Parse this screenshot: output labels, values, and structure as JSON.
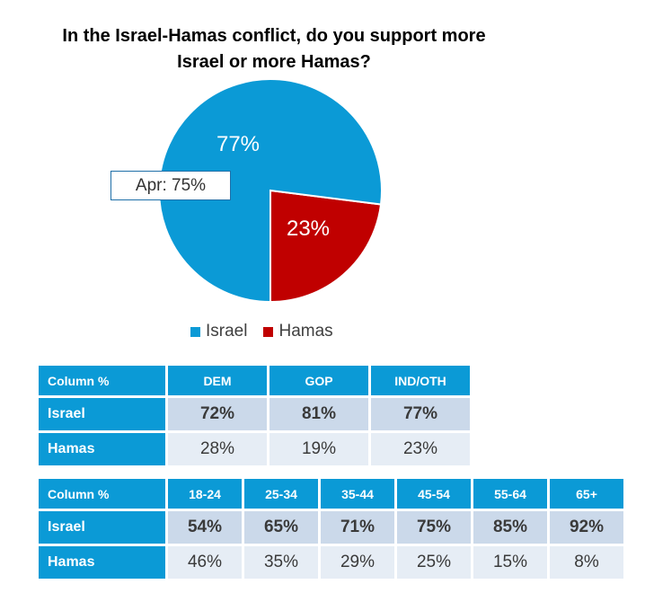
{
  "chart_data": {
    "type": "pie",
    "title": "In the Israel-Hamas conflict, do you support more Israel or more Hamas?",
    "title_lines": [
      "In the Israel-Hamas conflict, do you support more",
      "Israel or more Hamas?"
    ],
    "categories": [
      "Israel",
      "Hamas"
    ],
    "values": [
      77,
      23
    ],
    "value_labels": [
      "77%",
      "23%"
    ],
    "colors": [
      "#0b9ad6",
      "#c00000"
    ],
    "annotation": "Apr: 75%",
    "legend": [
      "Israel",
      "Hamas"
    ]
  },
  "table_party": {
    "header": [
      "Column %",
      "DEM",
      "GOP",
      "IND/OTH"
    ],
    "rows": [
      {
        "label": "Israel",
        "values": [
          "72%",
          "81%",
          "77%"
        ]
      },
      {
        "label": "Hamas",
        "values": [
          "28%",
          "19%",
          "23%"
        ]
      }
    ]
  },
  "table_age": {
    "header": [
      "Column %",
      "18-24",
      "25-34",
      "35-44",
      "45-54",
      "55-64",
      "65+"
    ],
    "rows": [
      {
        "label": "Israel",
        "values": [
          "54%",
          "65%",
          "71%",
          "75%",
          "85%",
          "92%"
        ]
      },
      {
        "label": "Hamas",
        "values": [
          "46%",
          "35%",
          "29%",
          "25%",
          "15%",
          "8%"
        ]
      }
    ]
  }
}
